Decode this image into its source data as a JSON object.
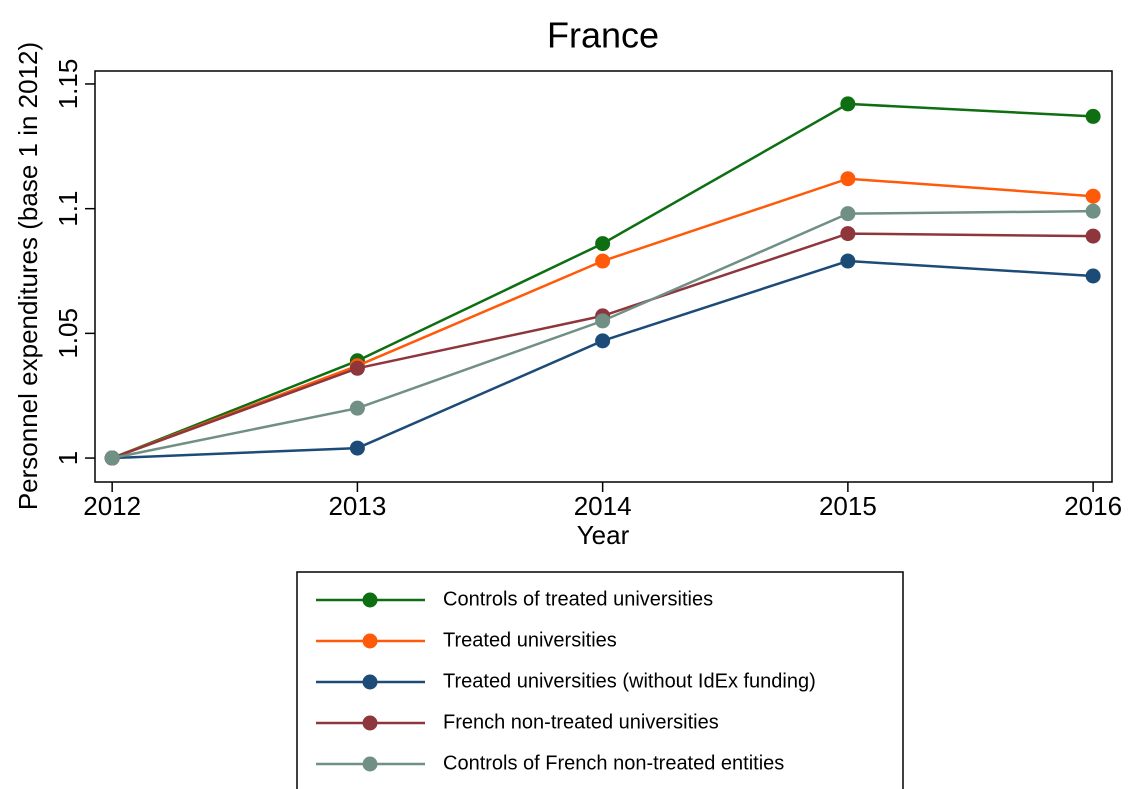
{
  "chart_data": {
    "type": "line",
    "title": "France",
    "x_label": "Year",
    "y_label": "Personnel expenditures (base 1 in 2012)",
    "x": [
      2012,
      2013,
      2014,
      2015,
      2016
    ],
    "xlim": [
      2011.93,
      2016.077
    ],
    "xticks": [
      2012,
      2013,
      2014,
      2015,
      2016
    ],
    "ylim": [
      0.9904,
      1.1552
    ],
    "yticks": [
      1,
      1.05,
      1.1,
      1.15
    ],
    "series": [
      {
        "name": "Controls of treated universities",
        "color": "#0e6e12",
        "values": [
          1,
          1.039,
          1.086,
          1.142,
          1.137
        ]
      },
      {
        "name": "Treated universities",
        "color": "#ff5a0a",
        "values": [
          1,
          1.037,
          1.079,
          1.112,
          1.105
        ]
      },
      {
        "name": "Treated universities (without IdEx funding)",
        "color": "#1d4b78",
        "values": [
          1,
          1.004,
          1.047,
          1.079,
          1.073
        ]
      },
      {
        "name": "French non-treated universities",
        "color": "#8e363c",
        "values": [
          1,
          1.036,
          1.057,
          1.09,
          1.089
        ]
      },
      {
        "name": "Controls of French non-treated entities",
        "color": "#708f85",
        "values": [
          1,
          1.02,
          1.055,
          1.098,
          1.099
        ]
      }
    ]
  }
}
